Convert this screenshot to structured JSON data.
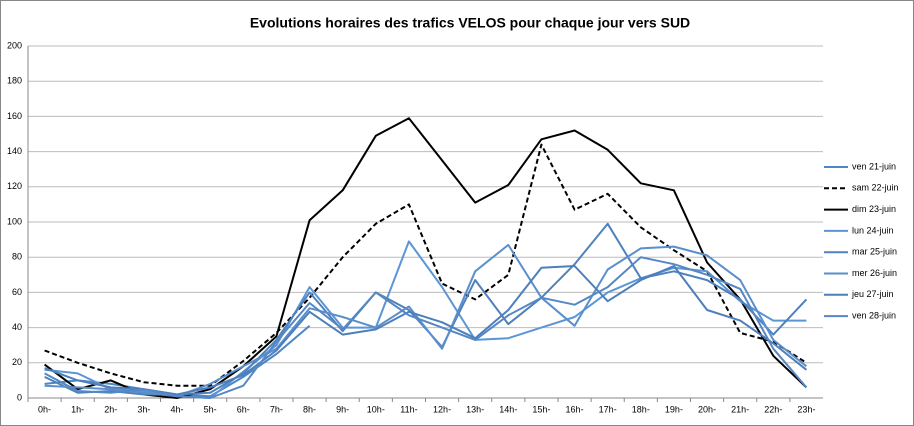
{
  "chart_data": {
    "type": "line",
    "title": "Evolutions horaires des trafics VELOS pour chaque jour vers SUD",
    "categories": [
      "0h-",
      "1h-",
      "2h-",
      "3h-",
      "4h-",
      "5h-",
      "6h-",
      "7h-",
      "8h-",
      "9h-",
      "10h-",
      "11h-",
      "12h-",
      "13h-",
      "14h-",
      "15h-",
      "16h-",
      "17h-",
      "18h-",
      "19h-",
      "20h-",
      "21h-",
      "22h-",
      "23h-"
    ],
    "ylim": [
      0,
      200
    ],
    "yticks": [
      0,
      20,
      40,
      60,
      80,
      100,
      120,
      140,
      160,
      180,
      200
    ],
    "grid": true,
    "legend": "right",
    "series": [
      {
        "name": "ven 21-juin",
        "color": "#4a86c8",
        "values": [
          8,
          10,
          8,
          5,
          2,
          1,
          12,
          25,
          41,
          null,
          null,
          null,
          null,
          null,
          null,
          null,
          null,
          null,
          null,
          null,
          null,
          null,
          null,
          null
        ]
      },
      {
        "name": "sam 22-juin",
        "color": "#000000",
        "style": "dashed",
        "values": [
          27,
          20,
          14,
          9,
          7,
          7,
          21,
          37,
          57,
          80,
          99,
          110,
          65,
          56,
          70,
          144,
          107,
          116,
          97,
          84,
          72,
          37,
          32,
          20
        ]
      },
      {
        "name": "dim 23-juin",
        "color": "#000000",
        "values": [
          19,
          5,
          10,
          2,
          0,
          5,
          18,
          35,
          101,
          118,
          149,
          159,
          135,
          111,
          121,
          147,
          152,
          141,
          122,
          118,
          77,
          56,
          24,
          6
        ]
      },
      {
        "name": "lun 24-juin",
        "color": "#5b95d6",
        "values": [
          16,
          14,
          5,
          4,
          1,
          0,
          15,
          30,
          63,
          40,
          40,
          89,
          63,
          33,
          34,
          40,
          46,
          60,
          68,
          74,
          72,
          55,
          44,
          44
        ]
      },
      {
        "name": "mar 25-juin",
        "color": "#4f81bd",
        "values": [
          12,
          3,
          4,
          2,
          2,
          3,
          14,
          33,
          60,
          38,
          60,
          50,
          29,
          67,
          42,
          57,
          76,
          99,
          68,
          72,
          67,
          56,
          36,
          56
        ]
      },
      {
        "name": "mer 26-juin",
        "color": "#5a8fcc",
        "values": [
          7,
          6,
          5,
          3,
          1,
          8,
          18,
          28,
          51,
          46,
          40,
          52,
          28,
          72,
          87,
          57,
          41,
          73,
          85,
          86,
          81,
          67,
          33,
          18
        ]
      },
      {
        "name": "jeu 27-juin",
        "color": "#4d7fba",
        "values": [
          17,
          10,
          6,
          5,
          2,
          6,
          13,
          27,
          49,
          36,
          39,
          49,
          43,
          34,
          50,
          74,
          75,
          55,
          67,
          75,
          50,
          44,
          31,
          16
        ]
      },
      {
        "name": "ven 28-juin",
        "color": "#5587c4",
        "values": [
          14,
          4,
          3,
          5,
          1,
          0,
          7,
          32,
          54,
          39,
          60,
          47,
          40,
          33,
          47,
          57,
          53,
          63,
          80,
          76,
          70,
          62,
          28,
          6
        ]
      }
    ]
  }
}
